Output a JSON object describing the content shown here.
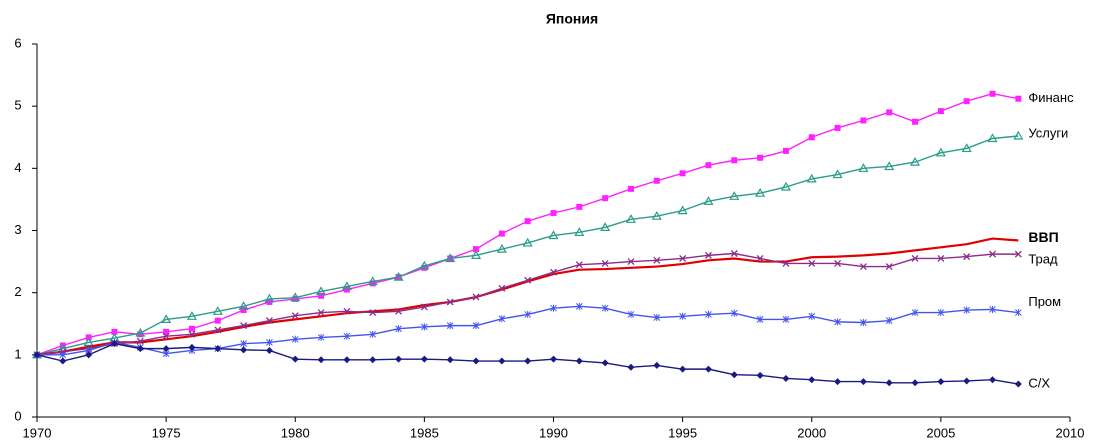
{
  "chart_data": {
    "type": "line",
    "title": "Япония",
    "x": [
      1970,
      1971,
      1972,
      1973,
      1974,
      1975,
      1976,
      1977,
      1978,
      1979,
      1980,
      1981,
      1982,
      1983,
      1984,
      1985,
      1986,
      1987,
      1988,
      1989,
      1990,
      1991,
      1992,
      1993,
      1994,
      1995,
      1996,
      1997,
      1998,
      1999,
      2000,
      2001,
      2002,
      2003,
      2004,
      2005,
      2006,
      2007,
      2008
    ],
    "xlim": [
      1970,
      2010
    ],
    "xticks": [
      1970,
      1975,
      1980,
      1985,
      1990,
      1995,
      2000,
      2005,
      2010
    ],
    "ylim": [
      0,
      6
    ],
    "yticks": [
      0,
      1,
      2,
      3,
      4,
      5,
      6
    ],
    "grid": false,
    "series": [
      {
        "name": "Финанс",
        "color": "#ff22ff",
        "marker": "square",
        "values": [
          1.0,
          1.15,
          1.28,
          1.37,
          1.33,
          1.37,
          1.42,
          1.55,
          1.72,
          1.85,
          1.9,
          1.95,
          2.05,
          2.15,
          2.25,
          2.4,
          2.55,
          2.7,
          2.95,
          3.15,
          3.28,
          3.38,
          3.52,
          3.67,
          3.8,
          3.92,
          4.05,
          4.13,
          4.17,
          4.28,
          4.5,
          4.65,
          4.77,
          4.9,
          4.75,
          4.92,
          5.08,
          5.2,
          5.12
        ]
      },
      {
        "name": "Услуги",
        "color": "#2a9d8a",
        "marker": "triangle",
        "values": [
          1.0,
          1.1,
          1.2,
          1.27,
          1.35,
          1.57,
          1.62,
          1.7,
          1.78,
          1.9,
          1.92,
          2.02,
          2.1,
          2.18,
          2.25,
          2.43,
          2.55,
          2.6,
          2.7,
          2.8,
          2.92,
          2.97,
          3.05,
          3.18,
          3.23,
          3.32,
          3.47,
          3.55,
          3.6,
          3.7,
          3.83,
          3.9,
          4.0,
          4.03,
          4.1,
          4.25,
          4.32,
          4.48,
          4.52
        ]
      },
      {
        "name": "ВВП",
        "color": "#e00000",
        "marker": "none",
        "bold": true,
        "values": [
          1.0,
          1.05,
          1.13,
          1.2,
          1.2,
          1.25,
          1.3,
          1.37,
          1.45,
          1.52,
          1.57,
          1.62,
          1.67,
          1.7,
          1.73,
          1.8,
          1.85,
          1.93,
          2.05,
          2.18,
          2.3,
          2.37,
          2.38,
          2.4,
          2.42,
          2.46,
          2.52,
          2.55,
          2.5,
          2.5,
          2.57,
          2.58,
          2.6,
          2.63,
          2.68,
          2.73,
          2.78,
          2.87,
          2.84
        ]
      },
      {
        "name": "Трад",
        "color": "#8b2c8b",
        "marker": "x",
        "values": [
          1.0,
          1.05,
          1.1,
          1.18,
          1.22,
          1.3,
          1.33,
          1.4,
          1.47,
          1.55,
          1.63,
          1.68,
          1.7,
          1.68,
          1.7,
          1.77,
          1.85,
          1.93,
          2.07,
          2.2,
          2.33,
          2.45,
          2.47,
          2.5,
          2.52,
          2.55,
          2.6,
          2.63,
          2.55,
          2.47,
          2.47,
          2.47,
          2.42,
          2.42,
          2.55,
          2.55,
          2.58,
          2.62,
          2.62
        ]
      },
      {
        "name": "Пром",
        "color": "#4455ee",
        "marker": "star",
        "values": [
          1.0,
          1.0,
          1.07,
          1.2,
          1.12,
          1.02,
          1.07,
          1.1,
          1.18,
          1.2,
          1.25,
          1.28,
          1.3,
          1.33,
          1.42,
          1.45,
          1.47,
          1.47,
          1.58,
          1.65,
          1.75,
          1.78,
          1.75,
          1.65,
          1.6,
          1.62,
          1.65,
          1.67,
          1.57,
          1.57,
          1.62,
          1.53,
          1.52,
          1.55,
          1.68,
          1.68,
          1.72,
          1.73,
          1.68
        ]
      },
      {
        "name": "С/Х",
        "color": "#1a1a80",
        "marker": "diamond",
        "values": [
          1.0,
          0.9,
          1.0,
          1.18,
          1.1,
          1.1,
          1.12,
          1.1,
          1.08,
          1.07,
          0.93,
          0.92,
          0.92,
          0.92,
          0.93,
          0.93,
          0.92,
          0.9,
          0.9,
          0.9,
          0.93,
          0.9,
          0.87,
          0.8,
          0.83,
          0.77,
          0.77,
          0.68,
          0.67,
          0.62,
          0.6,
          0.57,
          0.57,
          0.55,
          0.55,
          0.57,
          0.58,
          0.6,
          0.53
        ]
      }
    ]
  }
}
